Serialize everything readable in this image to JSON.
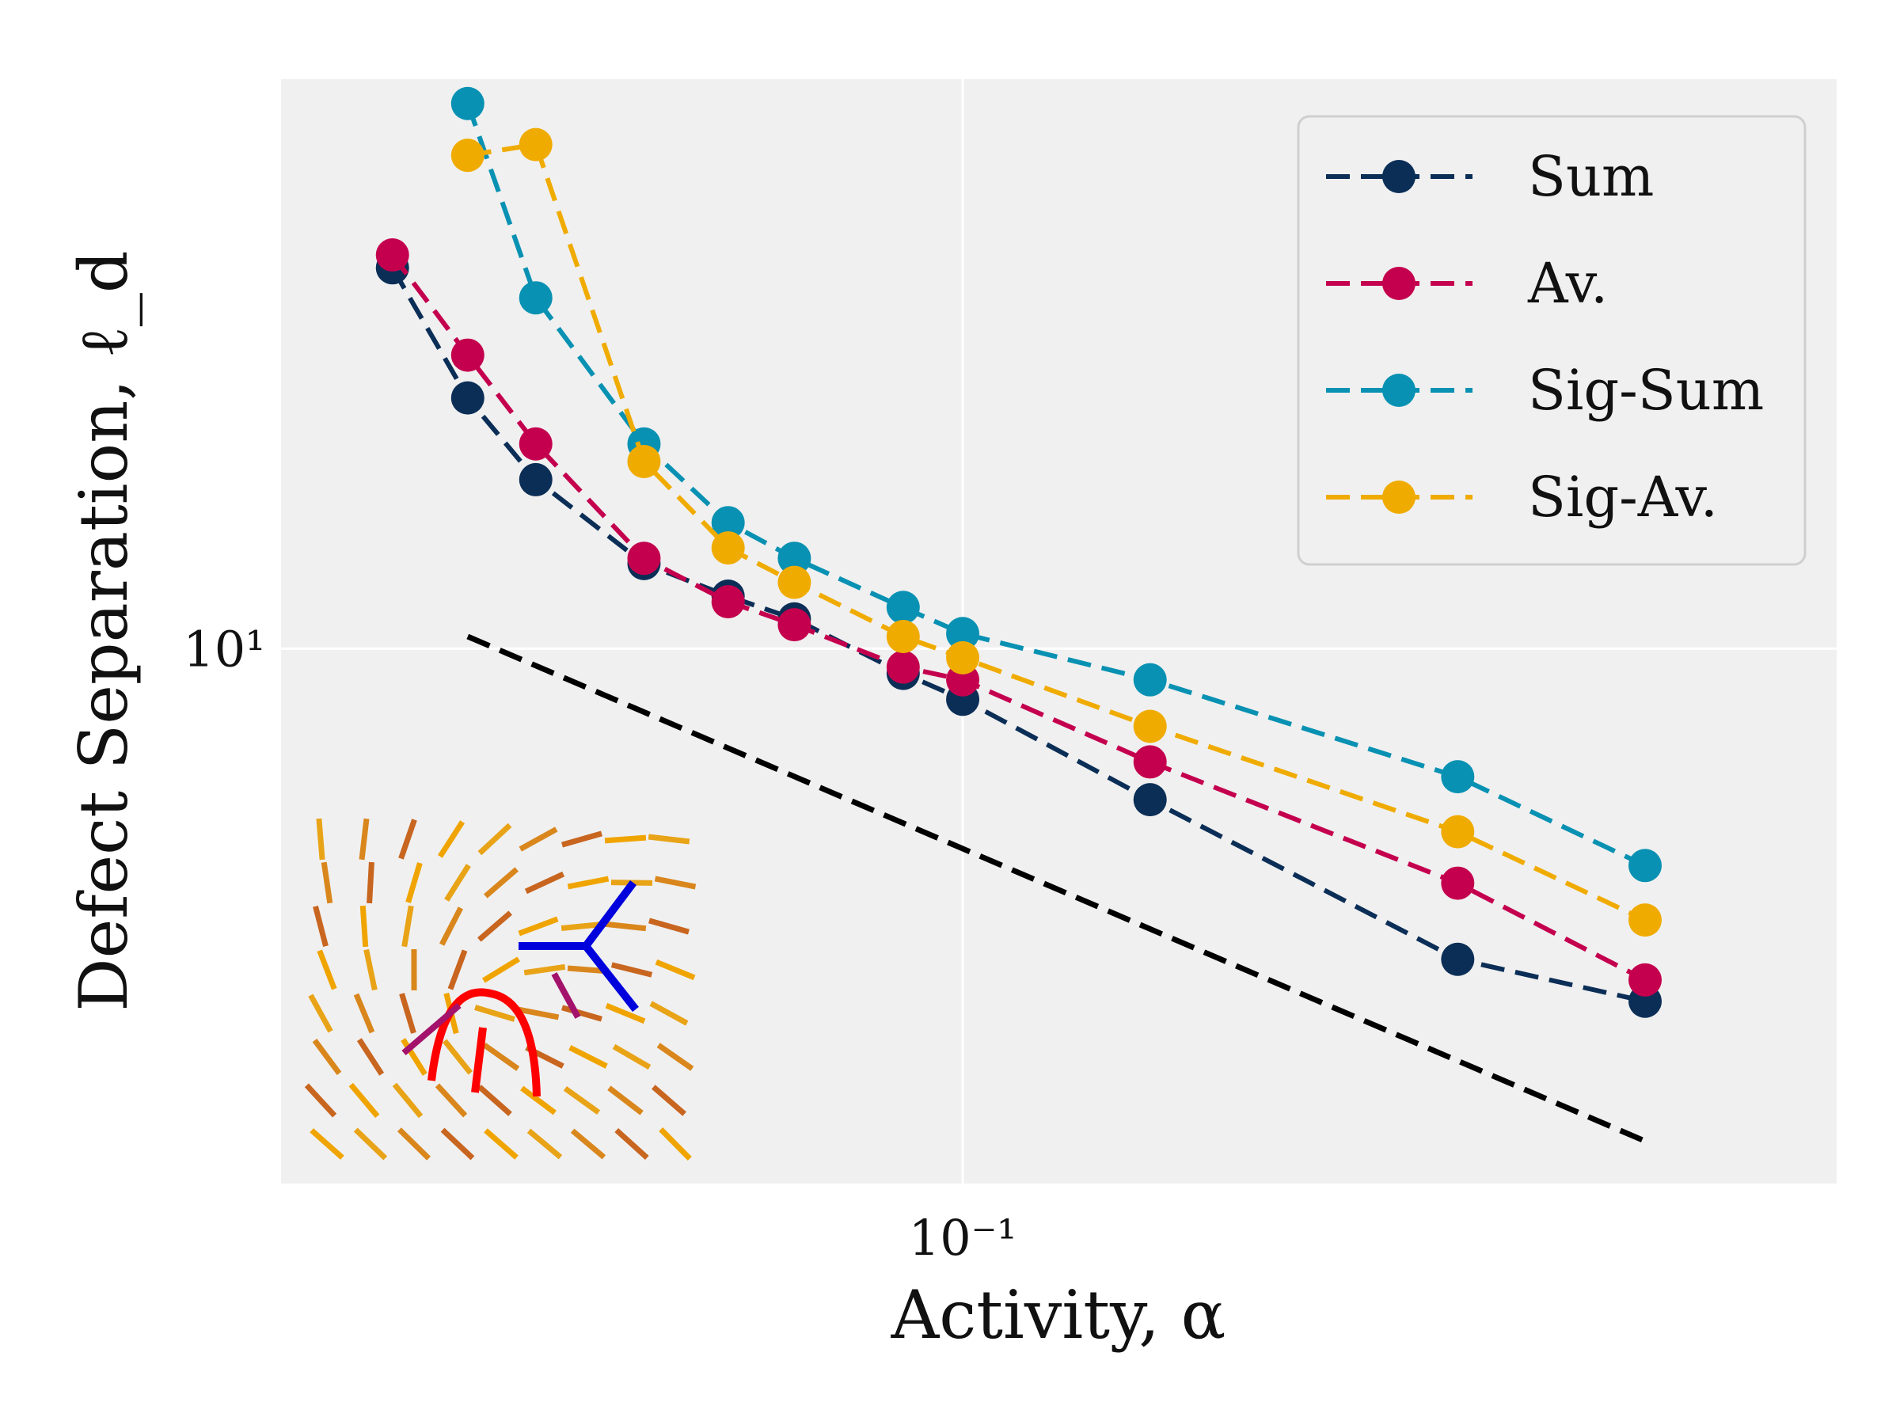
{
  "chart_data": {
    "type": "line",
    "x_scale": "log",
    "y_scale": "log",
    "xlabel": "Activity, α",
    "ylabel": "Defect Separation, ℓ_d",
    "xlim": [
      0.0385,
      0.34
    ],
    "ylim": [
      4.15,
      25.5
    ],
    "x_ticks": [
      {
        "value": 0.1,
        "label": "10⁻¹"
      }
    ],
    "y_ticks": [
      {
        "value": 10,
        "label": "10¹"
      }
    ],
    "grid": true,
    "legend": "top-right",
    "series": [
      {
        "name": "Sum",
        "color": "#0b2e57",
        "x": [
          0.045,
          0.05,
          0.055,
          0.064,
          0.072,
          0.079,
          0.092,
          0.1,
          0.13,
          0.2,
          0.26
        ],
        "y": [
          18.7,
          15.1,
          13.2,
          11.5,
          10.9,
          10.5,
          9.6,
          9.2,
          7.8,
          6.0,
          5.6
        ]
      },
      {
        "name": "Av.",
        "color": "#c4004e",
        "x": [
          0.045,
          0.05,
          0.055,
          0.064,
          0.072,
          0.079,
          0.092,
          0.1,
          0.13,
          0.2,
          0.26
        ],
        "y": [
          19.1,
          16.2,
          14.0,
          11.6,
          10.8,
          10.4,
          9.7,
          9.5,
          8.3,
          6.8,
          5.8
        ]
      },
      {
        "name": "Sig-Sum",
        "color": "#0891b2",
        "x": [
          0.05,
          0.055,
          0.064,
          0.072,
          0.079,
          0.092,
          0.1,
          0.13,
          0.2,
          0.26
        ],
        "y": [
          24.5,
          17.8,
          14.0,
          12.3,
          11.6,
          10.7,
          10.25,
          9.5,
          8.1,
          7.0
        ]
      },
      {
        "name": "Sig-Av.",
        "color": "#f0ab00",
        "x": [
          0.05,
          0.055,
          0.064,
          0.072,
          0.079,
          0.092,
          0.1,
          0.13,
          0.2,
          0.26
        ],
        "y": [
          22.5,
          22.9,
          13.6,
          11.8,
          11.15,
          10.2,
          9.85,
          8.8,
          7.4,
          6.4
        ]
      },
      {
        "color": "#000000",
        "x": [
          0.05,
          0.26
        ],
        "y": [
          10.2,
          4.45
        ]
      }
    ]
  }
}
